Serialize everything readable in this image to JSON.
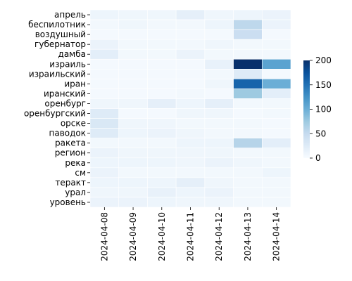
{
  "chart_data": {
    "type": "heatmap",
    "title": "",
    "xlabel": "",
    "ylabel": "",
    "x_categories": [
      "2024-04-08",
      "2024-04-09",
      "2024-04-10",
      "2024-04-11",
      "2024-04-12",
      "2024-04-13",
      "2024-04-14"
    ],
    "y_categories": [
      "апрель",
      "беспилотник",
      "воздушный",
      "губернатор",
      "дамба",
      "израиль",
      "израильский",
      "иран",
      "иранский",
      "оренбург",
      "оренбургский",
      "орске",
      "паводок",
      "ракета",
      "регион",
      "река",
      "см",
      "теракт",
      "урал",
      "уровень"
    ],
    "values": [
      [
        10,
        8,
        8,
        18,
        8,
        10,
        12
      ],
      [
        5,
        8,
        5,
        5,
        10,
        55,
        12
      ],
      [
        3,
        3,
        3,
        3,
        3,
        45,
        3
      ],
      [
        12,
        5,
        5,
        5,
        8,
        5,
        5
      ],
      [
        20,
        5,
        5,
        12,
        5,
        5,
        5
      ],
      [
        3,
        3,
        3,
        3,
        15,
        200,
        110
      ],
      [
        3,
        3,
        3,
        3,
        5,
        25,
        3
      ],
      [
        3,
        3,
        3,
        3,
        8,
        160,
        100
      ],
      [
        3,
        3,
        3,
        5,
        3,
        75,
        20
      ],
      [
        8,
        8,
        18,
        10,
        18,
        5,
        5
      ],
      [
        25,
        3,
        3,
        8,
        8,
        3,
        5
      ],
      [
        30,
        8,
        8,
        5,
        5,
        5,
        3
      ],
      [
        25,
        10,
        12,
        8,
        5,
        5,
        3
      ],
      [
        5,
        5,
        5,
        10,
        10,
        60,
        20
      ],
      [
        12,
        8,
        8,
        8,
        8,
        5,
        5
      ],
      [
        10,
        10,
        10,
        8,
        12,
        8,
        5
      ],
      [
        12,
        5,
        5,
        5,
        5,
        5,
        10
      ],
      [
        10,
        10,
        10,
        18,
        8,
        5,
        5
      ],
      [
        8,
        8,
        15,
        10,
        12,
        5,
        5
      ],
      [
        12,
        12,
        10,
        8,
        8,
        5,
        5
      ]
    ],
    "colorbar": {
      "min": 0,
      "max": 200,
      "ticks": [
        0,
        50,
        100,
        150,
        200
      ]
    },
    "colormap": "Blues",
    "cell_border_color": "#ffffff",
    "grid": false,
    "legend": "colorbar-right"
  }
}
